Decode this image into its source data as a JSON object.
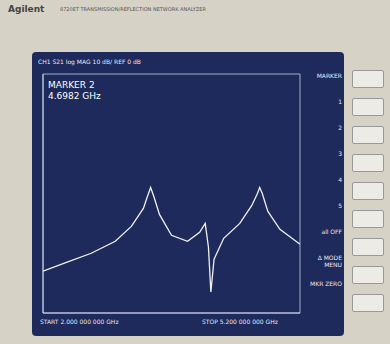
{
  "chart_data": {
    "type": "line",
    "title": "Agilent",
    "subtitle": "8720ET  TRANSMISSION/REFLECTION NETWORK ANALYZER",
    "annotations": [
      "CH1 S21 log MAG 10 dB/ REF 0 dB",
      "MARKER 2",
      "4.6982 GHz",
      "START 2.000 000 000 GHz",
      "STOP 5.200 000 000 GHz",
      "MARKER",
      "1",
      "2",
      "3",
      "4",
      "5",
      "all OFF",
      "Δ MODE MENU",
      "MKR ZERO"
    ],
    "x": [
      2.0,
      2.3,
      2.6,
      2.9,
      3.1,
      3.25,
      3.3,
      3.34,
      3.38,
      3.45,
      3.6,
      3.8,
      3.95,
      4.02,
      4.06,
      4.09,
      4.13,
      4.25,
      4.45,
      4.6,
      4.67,
      4.6982,
      4.73,
      4.8,
      4.95,
      5.1,
      5.2
    ],
    "values": [
      -66,
      -63,
      -60,
      -56,
      -51,
      -45,
      -41,
      -38,
      -41,
      -47,
      -54,
      -56,
      -53,
      -50,
      -58,
      -73,
      -62,
      -55,
      -50,
      -44,
      -40,
      -38,
      -40,
      -46,
      -52,
      -55,
      -57
    ],
    "color": "#f0f0f0",
    "xlim": [
      2,
      5.2
    ],
    "xticks": [
      2,
      2.32,
      2.64,
      2.96,
      3.28,
      3.6,
      3.92,
      4.24,
      4.56,
      4.88,
      5.2
    ],
    "ylim": [
      -80,
      0
    ],
    "yticks": [
      -80,
      -70,
      -60,
      -50,
      -40,
      -30,
      -20,
      -10,
      0
    ],
    "grid": true,
    "tick_labels": false
  }
}
